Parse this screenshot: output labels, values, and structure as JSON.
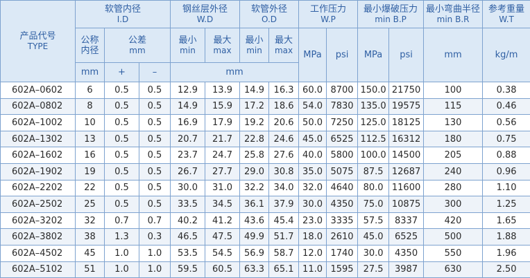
{
  "header": {
    "type": [
      "产品代号",
      "TYPE"
    ],
    "id": [
      "软管内径",
      "I.D"
    ],
    "wd": [
      "钢丝层外径",
      "W.D"
    ],
    "od": [
      "软管外径",
      "O.D"
    ],
    "wp": [
      "工作压力",
      "W.P"
    ],
    "bp": [
      "最小爆破压力",
      "min B.P"
    ],
    "br": [
      "最小弯曲半径",
      "min B.R"
    ],
    "wt": [
      "参考重量",
      "W.T"
    ],
    "nominal": [
      "公称",
      "内径"
    ],
    "tolerance": [
      "公差",
      "mm"
    ],
    "wd_min": [
      "最小",
      "min"
    ],
    "wd_max": [
      "最大",
      "max"
    ],
    "od_min": [
      "最小",
      "min"
    ],
    "od_max": [
      "最大",
      "max"
    ],
    "wp_mpa": "MPa",
    "wp_psi": "psi",
    "bp_mpa": "MPa",
    "bp_psi": "psi",
    "br_unit": "mm",
    "wt_unit": "kg/m",
    "nominal_unit": "mm",
    "plus": "+",
    "minus": "–",
    "dia_unit": "mm"
  },
  "rows": [
    [
      "602A–0602",
      "6",
      "0.5",
      "0.5",
      "12.9",
      "13.9",
      "14.9",
      "16.3",
      "60.0",
      "8700",
      "150.0",
      "21750",
      "100",
      "0.38"
    ],
    [
      "602A–0802",
      "8",
      "0.5",
      "0.5",
      "14.9",
      "15.9",
      "17.2",
      "18.6",
      "54.0",
      "7830",
      "135.0",
      "19575",
      "115",
      "0.46"
    ],
    [
      "602A–1002",
      "10",
      "0.5",
      "0.5",
      "16.9",
      "17.9",
      "19.2",
      "20.6",
      "50.0",
      "7250",
      "125.0",
      "18125",
      "130",
      "0.56"
    ],
    [
      "602A–1302",
      "13",
      "0.5",
      "0.5",
      "20.7",
      "21.7",
      "22.8",
      "24.6",
      "45.0",
      "6525",
      "112.5",
      "16312",
      "180",
      "0.75"
    ],
    [
      "602A–1602",
      "16",
      "0.5",
      "0.5",
      "23.7",
      "24.7",
      "25.8",
      "27.6",
      "40.0",
      "5800",
      "100.0",
      "14500",
      "205",
      "0.88"
    ],
    [
      "602A–1902",
      "19",
      "0.5",
      "0.5",
      "26.7",
      "27.7",
      "29.0",
      "30.8",
      "35.0",
      "5075",
      "87.5",
      "12687",
      "240",
      "0.96"
    ],
    [
      "602A–2202",
      "22",
      "0.5",
      "0.5",
      "30.0",
      "31.0",
      "32.2",
      "34.0",
      "32.0",
      "4640",
      "80.0",
      "11600",
      "280",
      "1.10"
    ],
    [
      "602A–2502",
      "25",
      "0.5",
      "0.5",
      "33.5",
      "34.5",
      "36.1",
      "37.9",
      "30.0",
      "4350",
      "75.0",
      "10875",
      "300",
      "1.25"
    ],
    [
      "602A–3202",
      "32",
      "0.7",
      "0.7",
      "40.2",
      "41.2",
      "43.6",
      "45.4",
      "23.0",
      "3335",
      "57.5",
      "8337",
      "420",
      "1.65"
    ],
    [
      "602A–3802",
      "38",
      "1.3",
      "0.3",
      "46.5",
      "47.5",
      "49.9",
      "51.7",
      "18.0",
      "2610",
      "45.0",
      "6525",
      "500",
      "1.88"
    ],
    [
      "602A–4502",
      "45",
      "1.0",
      "1.0",
      "53.5",
      "54.5",
      "56.9",
      "58.7",
      "12.0",
      "1740",
      "30.0",
      "4350",
      "550",
      "1.96"
    ],
    [
      "602A–5102",
      "51",
      "1.0",
      "1.0",
      "59.5",
      "60.5",
      "63.3",
      "65.1",
      "11.0",
      "1595",
      "27.5",
      "3987",
      "630",
      "2.50"
    ]
  ]
}
